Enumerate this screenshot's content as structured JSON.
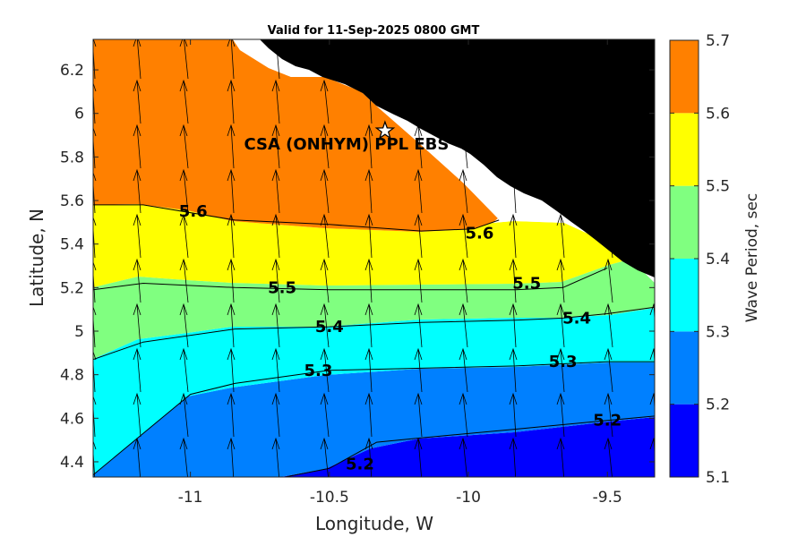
{
  "title": "Valid for 11-Sep-2025 0800 GMT",
  "chart_data": {
    "type": "contour",
    "xlabel": "Longitude, W",
    "ylabel": "Latitude, N",
    "colorbar_label": "Wave Period, sec",
    "xlim": [
      -11.35,
      -9.33
    ],
    "ylim": [
      4.33,
      6.34
    ],
    "xticks": [
      -11,
      -10.5,
      -10,
      -9.5
    ],
    "xtick_labels": [
      "-11",
      "-10.5",
      "-10",
      "-9.5"
    ],
    "yticks": [
      4.4,
      4.6,
      4.8,
      5,
      5.2,
      5.4,
      5.6,
      5.8,
      6,
      6.2
    ],
    "ytick_labels": [
      "4.4",
      "4.6",
      "4.8",
      "5",
      "5.2",
      "5.4",
      "5.6",
      "5.8",
      "6",
      "6.2"
    ],
    "colorbar": {
      "levels": [
        5.1,
        5.2,
        5.3,
        5.4,
        5.5,
        5.6,
        5.7
      ],
      "tick_labels": [
        "5.1",
        "5.2",
        "5.3",
        "5.4",
        "5.5",
        "5.6",
        "5.7"
      ],
      "colors": [
        "#0000ff",
        "#0080ff",
        "#00ffff",
        "#80ff80",
        "#ffff00",
        "#ff8000"
      ]
    },
    "contours": [
      {
        "level": 5.6,
        "label": "5.6",
        "points": [
          [
            -11.35,
            5.58
          ],
          [
            -11.17,
            5.58
          ],
          [
            -10.84,
            5.51
          ],
          [
            -10.5,
            5.49
          ],
          [
            -10.17,
            5.46
          ],
          [
            -9.98,
            5.47
          ],
          [
            -9.89,
            5.51
          ]
        ]
      },
      {
        "level": 5.5,
        "label": "5.5",
        "points": [
          [
            -11.35,
            5.19
          ],
          [
            -11.17,
            5.22
          ],
          [
            -10.84,
            5.2
          ],
          [
            -10.5,
            5.19
          ],
          [
            -10.17,
            5.19
          ],
          [
            -9.83,
            5.19
          ],
          [
            -9.66,
            5.2
          ],
          [
            -9.5,
            5.29
          ]
        ]
      },
      {
        "level": 5.4,
        "label": "5.4",
        "points": [
          [
            -11.35,
            4.87
          ],
          [
            -11.17,
            4.95
          ],
          [
            -10.84,
            5.01
          ],
          [
            -10.5,
            5.02
          ],
          [
            -10.17,
            5.04
          ],
          [
            -9.83,
            5.05
          ],
          [
            -9.66,
            5.06
          ],
          [
            -9.5,
            5.08
          ],
          [
            -9.33,
            5.11
          ]
        ]
      },
      {
        "level": 5.3,
        "label": "5.3",
        "points": [
          [
            -11.35,
            4.34
          ],
          [
            -11.17,
            4.53
          ],
          [
            -11.0,
            4.71
          ],
          [
            -10.84,
            4.76
          ],
          [
            -10.5,
            4.82
          ],
          [
            -10.17,
            4.83
          ],
          [
            -9.83,
            4.84
          ],
          [
            -9.5,
            4.86
          ],
          [
            -9.33,
            4.86
          ]
        ]
      },
      {
        "level": 5.2,
        "label": "5.2",
        "points": [
          [
            -10.66,
            4.33
          ],
          [
            -10.5,
            4.37
          ],
          [
            -10.33,
            4.49
          ],
          [
            -10.17,
            4.51
          ],
          [
            -9.83,
            4.55
          ],
          [
            -9.5,
            4.59
          ],
          [
            -9.33,
            4.61
          ]
        ]
      }
    ],
    "contour_labels": [
      {
        "text": "5.6",
        "x": -10.99,
        "y": 5.55
      },
      {
        "text": "5.6",
        "x": -9.96,
        "y": 5.45
      },
      {
        "text": "5.5",
        "x": -10.67,
        "y": 5.2
      },
      {
        "text": "5.5",
        "x": -9.79,
        "y": 5.22
      },
      {
        "text": "5.4",
        "x": -10.5,
        "y": 5.02
      },
      {
        "text": "5.4",
        "x": -9.61,
        "y": 5.06
      },
      {
        "text": "5.3",
        "x": -10.54,
        "y": 4.82
      },
      {
        "text": "5.3",
        "x": -9.66,
        "y": 4.86
      },
      {
        "text": "5.2",
        "x": -10.39,
        "y": 4.39
      },
      {
        "text": "5.2",
        "x": -9.5,
        "y": 4.59
      }
    ],
    "site": {
      "name": "CSA (ONHYM) PPL EBS",
      "lon": -10.3,
      "lat": 5.92
    }
  }
}
